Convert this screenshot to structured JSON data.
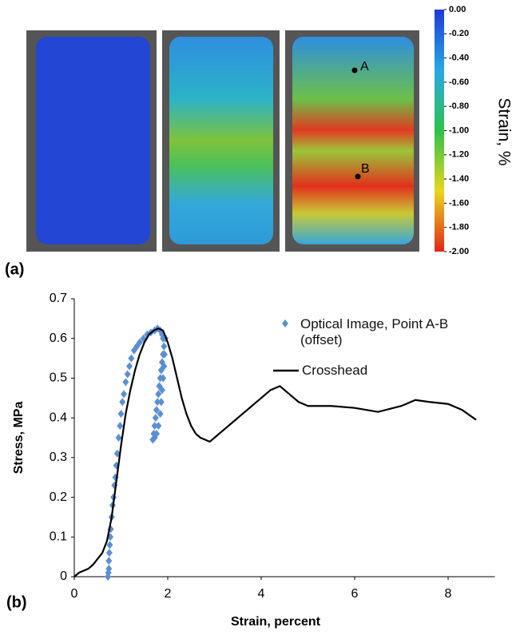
{
  "figure": {
    "panel_labels": [
      "(a)",
      "(b)"
    ],
    "point_labels": [
      "A",
      "B"
    ],
    "colorbar": {
      "label": "Strain, %",
      "lim": [
        -2,
        0
      ],
      "ticks": [
        {
          "value": 0,
          "label": "0.00"
        },
        {
          "value": -0.2,
          "label": "-0.20"
        },
        {
          "value": -0.4,
          "label": "-0.40"
        },
        {
          "value": -0.6,
          "label": "-0.60"
        },
        {
          "value": -0.8,
          "label": "-0.80"
        },
        {
          "value": -1,
          "label": "-1.00"
        },
        {
          "value": -1.2,
          "label": "-1.20"
        },
        {
          "value": -1.4,
          "label": "-1.40"
        },
        {
          "value": -1.6,
          "label": "-1.60"
        },
        {
          "value": -1.8,
          "label": "-1.80"
        },
        {
          "value": -2,
          "label": "-2.00"
        }
      ],
      "colors": [
        "#1e3ad8",
        "#27a9e6",
        "#2ec24a",
        "#e9d61c",
        "#e2261a"
      ]
    }
  },
  "chart_data": {
    "type": "line",
    "x_label": "Strain, percent",
    "y_label": "Stress, MPa",
    "xlim": [
      0,
      9
    ],
    "xticks": [
      0,
      2,
      4,
      6,
      8
    ],
    "ylim": [
      0,
      0.7
    ],
    "yticks": [
      0,
      0.1,
      0.2,
      0.3,
      0.4,
      0.5,
      0.6,
      0.7
    ],
    "series": [
      {
        "name": "Optical Image, Point A-B (offset)",
        "type": "scatter",
        "color": "#5b8fd3",
        "x": [
          0.72,
          0.73,
          0.74,
          0.74,
          0.75,
          0.76,
          0.77,
          0.78,
          0.8,
          0.82,
          0.84,
          0.86,
          0.88,
          0.9,
          0.92,
          0.95,
          0.98,
          1.0,
          1.03,
          1.06,
          1.1,
          1.14,
          1.18,
          1.22,
          1.28,
          1.34,
          1.4,
          1.48,
          1.56,
          1.64,
          1.72,
          1.78,
          1.84,
          1.88,
          1.9,
          1.92,
          1.9,
          1.88,
          1.86,
          1.84,
          1.82,
          1.8,
          1.78,
          1.76,
          1.74,
          1.72,
          1.7,
          1.68,
          1.72,
          1.76,
          1.8,
          1.84,
          1.86,
          1.88,
          1.9,
          1.92,
          1.93,
          1.95
        ],
        "values": [
          0.0,
          0.01,
          0.02,
          0.04,
          0.06,
          0.08,
          0.1,
          0.12,
          0.15,
          0.18,
          0.2,
          0.23,
          0.25,
          0.28,
          0.31,
          0.35,
          0.38,
          0.41,
          0.44,
          0.46,
          0.49,
          0.51,
          0.53,
          0.55,
          0.57,
          0.58,
          0.59,
          0.6,
          0.61,
          0.615,
          0.62,
          0.625,
          0.62,
          0.61,
          0.6,
          0.58,
          0.56,
          0.54,
          0.52,
          0.5,
          0.48,
          0.46,
          0.44,
          0.42,
          0.4,
          0.38,
          0.36,
          0.345,
          0.35,
          0.36,
          0.38,
          0.41,
          0.44,
          0.47,
          0.5,
          0.53,
          0.56,
          0.6
        ]
      },
      {
        "name": "Crosshead",
        "type": "line",
        "color": "#000000",
        "x": [
          0,
          0.1,
          0.2,
          0.3,
          0.4,
          0.5,
          0.6,
          0.7,
          0.8,
          0.9,
          1.0,
          1.1,
          1.2,
          1.3,
          1.4,
          1.5,
          1.6,
          1.7,
          1.8,
          1.9,
          2.0,
          2.1,
          2.2,
          2.3,
          2.4,
          2.5,
          2.6,
          2.7,
          2.8,
          2.9,
          3.0,
          3.2,
          3.4,
          3.6,
          3.8,
          4.0,
          4.2,
          4.4,
          4.6,
          4.8,
          5.0,
          5.5,
          6.0,
          6.5,
          7.0,
          7.3,
          7.6,
          8.0,
          8.3,
          8.6
        ],
        "values": [
          0,
          0.01,
          0.015,
          0.02,
          0.03,
          0.045,
          0.06,
          0.09,
          0.15,
          0.24,
          0.33,
          0.41,
          0.47,
          0.52,
          0.56,
          0.59,
          0.61,
          0.62,
          0.625,
          0.62,
          0.59,
          0.55,
          0.5,
          0.45,
          0.41,
          0.38,
          0.36,
          0.35,
          0.345,
          0.34,
          0.35,
          0.37,
          0.39,
          0.41,
          0.43,
          0.45,
          0.47,
          0.48,
          0.46,
          0.44,
          0.43,
          0.43,
          0.425,
          0.415,
          0.43,
          0.445,
          0.44,
          0.435,
          0.42,
          0.395
        ]
      }
    ]
  }
}
